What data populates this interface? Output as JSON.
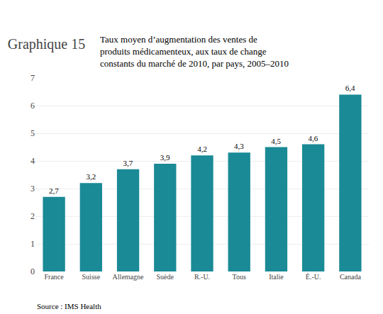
{
  "chart_data": {
    "type": "bar",
    "title": "Graphique 15",
    "subtitle": "Taux moyen d’augmentation des ventes de\nproduits médicamenteux, aux taux de change\nconstants du marché de 2010, par pays, 2005–2010",
    "annotations": [
      "Source : IMS Health"
    ],
    "categories": [
      "France",
      "Suisse",
      "Allemagne",
      "Suède",
      "R.-U.",
      "Tous",
      "Italie",
      "É.-U.",
      "Canada"
    ],
    "values": [
      2.7,
      3.2,
      3.7,
      3.9,
      4.2,
      4.3,
      4.5,
      4.6,
      6.4
    ],
    "value_labels": [
      "2,7",
      "3,2",
      "3,7",
      "3,9",
      "4,2",
      "4,3",
      "4,5",
      "4,6",
      "6,4"
    ],
    "data_labels": true,
    "color": "#1a8a96",
    "ylim": [
      0,
      7
    ],
    "yticks": [
      0,
      1,
      2,
      3,
      4,
      5,
      6,
      7
    ],
    "grid": true
  }
}
